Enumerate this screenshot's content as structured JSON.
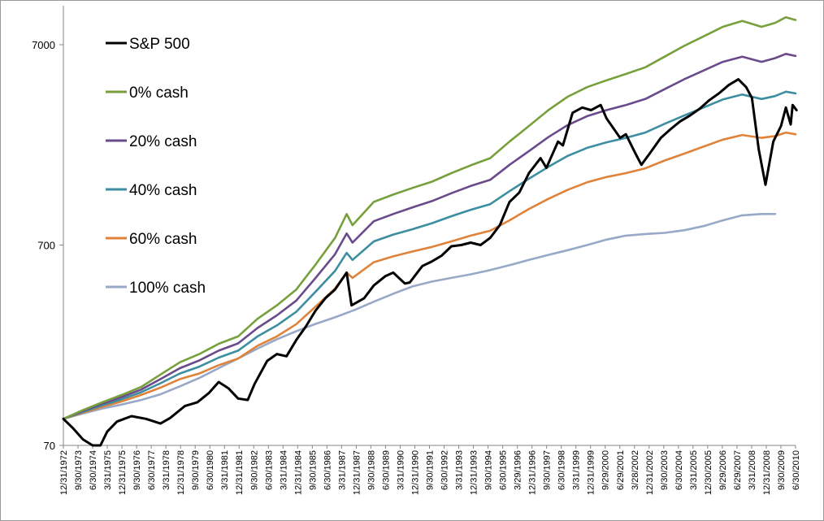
{
  "chart_data": {
    "type": "line",
    "title": "",
    "xlabel": "",
    "ylabel": "",
    "yscale": "log",
    "ylim": [
      70,
      10000
    ],
    "y_ticks": [
      "70",
      "700",
      "7000"
    ],
    "grid": false,
    "legend_position": "top-left",
    "x_tick_labels": [
      "12/31/1972",
      "9/30/1973",
      "6/30/1974",
      "3/31/1975",
      "12/31/1975",
      "9/30/1976",
      "6/30/1977",
      "3/31/1978",
      "12/31/1978",
      "9/30/1979",
      "6/30/1980",
      "3/31/1981",
      "12/31/1981",
      "9/30/1982",
      "6/30/1983",
      "3/31/1984",
      "12/31/1984",
      "9/30/1985",
      "6/30/1986",
      "3/31/1987",
      "12/31/1987",
      "9/30/1988",
      "6/30/1989",
      "3/31/1990",
      "12/31/1990",
      "9/30/1991",
      "6/30/1992",
      "3/31/1993",
      "12/31/1993",
      "9/30/1994",
      "6/30/1995",
      "3/29/1996",
      "12/31/1996",
      "9/30/1997",
      "6/30/1998",
      "3/31/1999",
      "12/31/1999",
      "9/29/2000",
      "6/29/2001",
      "3/28/2002",
      "12/31/2002",
      "9/30/2003",
      "6/30/2004",
      "3/31/2005",
      "12/30/2005",
      "9/29/2006",
      "6/29/2007",
      "3/31/2008",
      "12/31/2008",
      "9/30/2009",
      "6/30/2010"
    ],
    "series": [
      {
        "name": "S&P 500",
        "color": "#000000",
        "x": [
          1972.99,
          1973.5,
          1974.0,
          1974.5,
          1974.9,
          1975.25,
          1975.75,
          1976.5,
          1977.25,
          1978.0,
          1978.5,
          1979.25,
          1979.9,
          1980.5,
          1981.0,
          1981.5,
          1982.0,
          1982.5,
          1982.85,
          1983.5,
          1984.0,
          1984.5,
          1985.0,
          1985.5,
          1986.0,
          1986.5,
          1987.0,
          1987.6,
          1987.85,
          1988.5,
          1989.0,
          1989.6,
          1990.0,
          1990.6,
          1990.85,
          1991.5,
          1992.0,
          1992.5,
          1993.0,
          1993.5,
          1994.0,
          1994.5,
          1995.0,
          1995.5,
          1996.0,
          1996.5,
          1997.0,
          1997.6,
          1997.9,
          1998.5,
          1998.75,
          1999.25,
          1999.75,
          2000.2,
          2000.7,
          2001.0,
          2001.7,
          2002.0,
          2002.5,
          2002.8,
          2003.3,
          2003.8,
          2004.3,
          2004.8,
          2005.3,
          2005.8,
          2006.3,
          2006.8,
          2007.3,
          2007.8,
          2008.2,
          2008.5,
          2008.85,
          2009.2,
          2009.6,
          2010.0,
          2010.25,
          2010.5,
          2010.6,
          2010.8
        ],
        "values": [
          95,
          85,
          75,
          62,
          64,
          82,
          92,
          98,
          95,
          90,
          96,
          110,
          115,
          128,
          145,
          135,
          120,
          118,
          142,
          185,
          200,
          195,
          235,
          275,
          330,
          380,
          420,
          510,
          350,
          380,
          440,
          490,
          510,
          450,
          455,
          550,
          580,
          620,
          690,
          700,
          720,
          700,
          760,
          880,
          1150,
          1280,
          1600,
          1900,
          1700,
          2300,
          2200,
          3200,
          3400,
          3300,
          3500,
          3000,
          2400,
          2500,
          2000,
          1760,
          2050,
          2400,
          2650,
          2900,
          3100,
          3350,
          3700,
          4000,
          4400,
          4700,
          4300,
          3800,
          2100,
          1400,
          2300,
          2750,
          3400,
          2800,
          3500,
          3300
        ]
      },
      {
        "name": "0% cash",
        "color": "#77a03c",
        "x": [
          1972.99,
          1974.0,
          1975.0,
          1976.0,
          1977.0,
          1978.0,
          1979.0,
          1980.0,
          1981.0,
          1982.0,
          1983.0,
          1984.0,
          1985.0,
          1986.0,
          1987.0,
          1987.6,
          1987.9,
          1989.0,
          1990.0,
          1991.0,
          1992.0,
          1993.0,
          1994.0,
          1995.0,
          1996.0,
          1997.0,
          1998.0,
          1999.0,
          2000.0,
          2001.0,
          2002.0,
          2003.0,
          2004.0,
          2005.0,
          2006.0,
          2007.0,
          2008.0,
          2009.0,
          2009.7,
          2010.25,
          2010.75
        ],
        "values": [
          95,
          105,
          115,
          125,
          137,
          158,
          182,
          200,
          225,
          245,
          300,
          350,
          420,
          560,
          760,
          1000,
          880,
          1150,
          1250,
          1350,
          1450,
          1600,
          1750,
          1900,
          2300,
          2750,
          3300,
          3850,
          4300,
          4650,
          5000,
          5400,
          6100,
          6900,
          7700,
          8600,
          9200,
          8600,
          9000,
          9600,
          9300
        ]
      },
      {
        "name": "20% cash",
        "color": "#6b4a8c",
        "x": [
          1972.99,
          1974.0,
          1975.0,
          1976.0,
          1977.0,
          1978.0,
          1979.0,
          1980.0,
          1981.0,
          1982.0,
          1983.0,
          1984.0,
          1985.0,
          1986.0,
          1987.0,
          1987.6,
          1987.9,
          1989.0,
          1990.0,
          1991.0,
          1992.0,
          1993.0,
          1994.0,
          1995.0,
          1996.0,
          1997.0,
          1998.0,
          1999.0,
          2000.0,
          2001.0,
          2002.0,
          2003.0,
          2004.0,
          2005.0,
          2006.0,
          2007.0,
          2008.0,
          2009.0,
          2009.7,
          2010.25,
          2010.75
        ],
        "values": [
          95,
          104,
          113,
          122,
          133,
          150,
          170,
          186,
          208,
          226,
          270,
          312,
          370,
          480,
          630,
          800,
          720,
          920,
          1000,
          1080,
          1160,
          1270,
          1380,
          1480,
          1760,
          2060,
          2420,
          2780,
          3080,
          3300,
          3500,
          3750,
          4200,
          4700,
          5200,
          5750,
          6100,
          5750,
          6000,
          6300,
          6150
        ]
      },
      {
        "name": "40% cash",
        "color": "#3c8ea0",
        "x": [
          1972.99,
          1974.0,
          1975.0,
          1976.0,
          1977.0,
          1978.0,
          1979.0,
          1980.0,
          1981.0,
          1982.0,
          1983.0,
          1984.0,
          1985.0,
          1986.0,
          1987.0,
          1987.6,
          1987.9,
          1989.0,
          1990.0,
          1991.0,
          1992.0,
          1993.0,
          1994.0,
          1995.0,
          1996.0,
          1997.0,
          1998.0,
          1999.0,
          2000.0,
          2001.0,
          2002.0,
          2003.0,
          2004.0,
          2005.0,
          2006.0,
          2007.0,
          2008.0,
          2009.0,
          2009.7,
          2010.25,
          2010.75
        ],
        "values": [
          95,
          103,
          111,
          119,
          129,
          143,
          160,
          173,
          192,
          208,
          245,
          278,
          325,
          410,
          520,
          640,
          590,
          730,
          790,
          840,
          900,
          975,
          1050,
          1120,
          1300,
          1500,
          1720,
          1950,
          2140,
          2280,
          2400,
          2550,
          2820,
          3100,
          3400,
          3730,
          3950,
          3750,
          3880,
          4080,
          4000
        ]
      },
      {
        "name": "60% cash",
        "color": "#e0833a",
        "x": [
          1972.99,
          1974.0,
          1975.0,
          1976.0,
          1977.0,
          1978.0,
          1979.0,
          1980.0,
          1981.0,
          1982.0,
          1983.0,
          1984.0,
          1985.0,
          1986.0,
          1987.0,
          1987.6,
          1987.9,
          1989.0,
          1990.0,
          1991.0,
          1992.0,
          1993.0,
          1994.0,
          1995.0,
          1996.0,
          1997.0,
          1998.0,
          1999.0,
          2000.0,
          2001.0,
          2002.0,
          2003.0,
          2004.0,
          2005.0,
          2006.0,
          2007.0,
          2008.0,
          2009.0,
          2009.7,
          2010.25,
          2010.75
        ],
        "values": [
          95,
          102,
          109,
          116,
          125,
          136,
          150,
          160,
          176,
          190,
          220,
          245,
          282,
          345,
          425,
          510,
          480,
          575,
          615,
          650,
          685,
          730,
          780,
          825,
          930,
          1060,
          1190,
          1320,
          1440,
          1530,
          1600,
          1690,
          1850,
          2000,
          2170,
          2350,
          2480,
          2400,
          2450,
          2550,
          2500
        ]
      },
      {
        "name": "100% cash",
        "color": "#97a9c7",
        "x": [
          1972.99,
          1974.0,
          1975.0,
          1976.0,
          1977.0,
          1978.0,
          1979.0,
          1980.0,
          1981.0,
          1982.0,
          1983.0,
          1984.0,
          1985.0,
          1986.0,
          1987.0,
          1988.0,
          1989.0,
          1990.0,
          1991.0,
          1992.0,
          1993.0,
          1994.0,
          1995.0,
          1996.0,
          1997.0,
          1998.0,
          1999.0,
          2000.0,
          2001.0,
          2002.0,
          2003.0,
          2004.0,
          2005.0,
          2006.0,
          2007.0,
          2008.0,
          2009.0,
          2009.7
        ],
        "values": [
          95,
          101,
          107,
          112,
          118,
          126,
          138,
          152,
          170,
          190,
          213,
          237,
          260,
          283,
          305,
          332,
          365,
          400,
          435,
          460,
          480,
          500,
          525,
          555,
          590,
          625,
          660,
          700,
          745,
          780,
          795,
          805,
          830,
          870,
          930,
          985,
          1000,
          1000
        ]
      }
    ]
  }
}
